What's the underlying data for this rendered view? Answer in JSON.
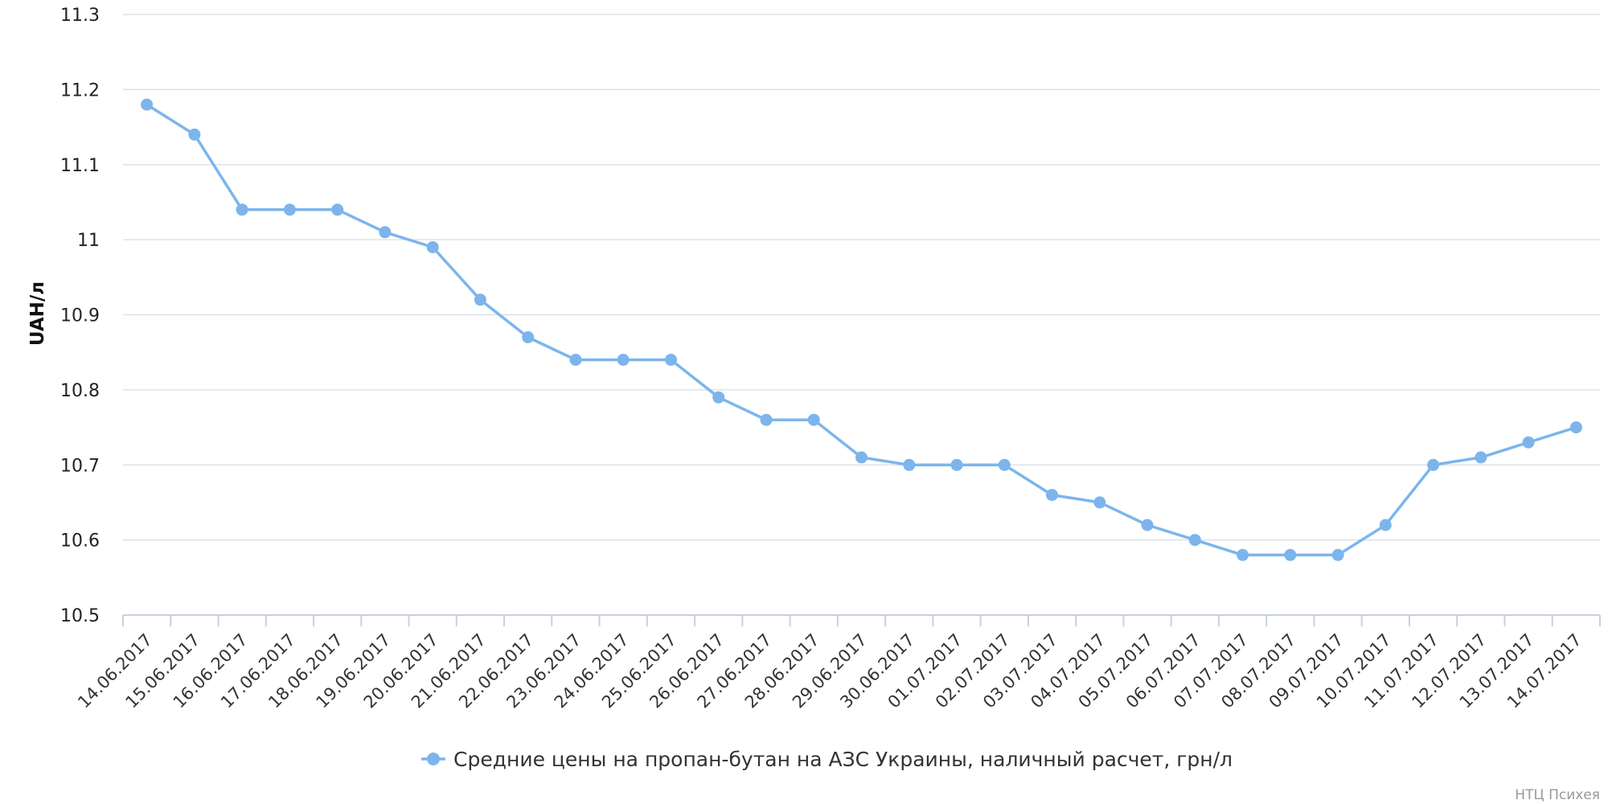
{
  "credit": "НТЦ Психея",
  "colors": {
    "series": "#7cb5ec",
    "grid": "#dadde3",
    "axis": "#c8d0e0"
  },
  "chart_data": {
    "type": "line",
    "title": "",
    "xlabel": "",
    "ylabel": "UAH/л",
    "ylim": [
      10.5,
      11.3
    ],
    "yticks": [
      "10.5",
      "10.6",
      "10.7",
      "10.8",
      "10.9",
      "11",
      "11.1",
      "11.2",
      "11.3"
    ],
    "grid": true,
    "legend_position": "bottom-center",
    "categories": [
      "14.06.2017",
      "15.06.2017",
      "16.06.2017",
      "17.06.2017",
      "18.06.2017",
      "19.06.2017",
      "20.06.2017",
      "21.06.2017",
      "22.06.2017",
      "23.06.2017",
      "24.06.2017",
      "25.06.2017",
      "26.06.2017",
      "27.06.2017",
      "28.06.2017",
      "29.06.2017",
      "30.06.2017",
      "01.07.2017",
      "02.07.2017",
      "03.07.2017",
      "04.07.2017",
      "05.07.2017",
      "06.07.2017",
      "07.07.2017",
      "08.07.2017",
      "09.07.2017",
      "10.07.2017",
      "11.07.2017",
      "12.07.2017",
      "13.07.2017",
      "14.07.2017"
    ],
    "series": [
      {
        "name": "Средние цены на пропан-бутан на АЗС Украины, наличный расчет, грн/л",
        "values": [
          11.18,
          11.14,
          11.04,
          11.04,
          11.04,
          11.01,
          10.99,
          10.92,
          10.87,
          10.84,
          10.84,
          10.84,
          10.79,
          10.76,
          10.76,
          10.71,
          10.7,
          10.7,
          10.7,
          10.66,
          10.65,
          10.62,
          10.6,
          10.58,
          10.58,
          10.58,
          10.62,
          10.7,
          10.71,
          10.73,
          10.75
        ]
      }
    ]
  }
}
